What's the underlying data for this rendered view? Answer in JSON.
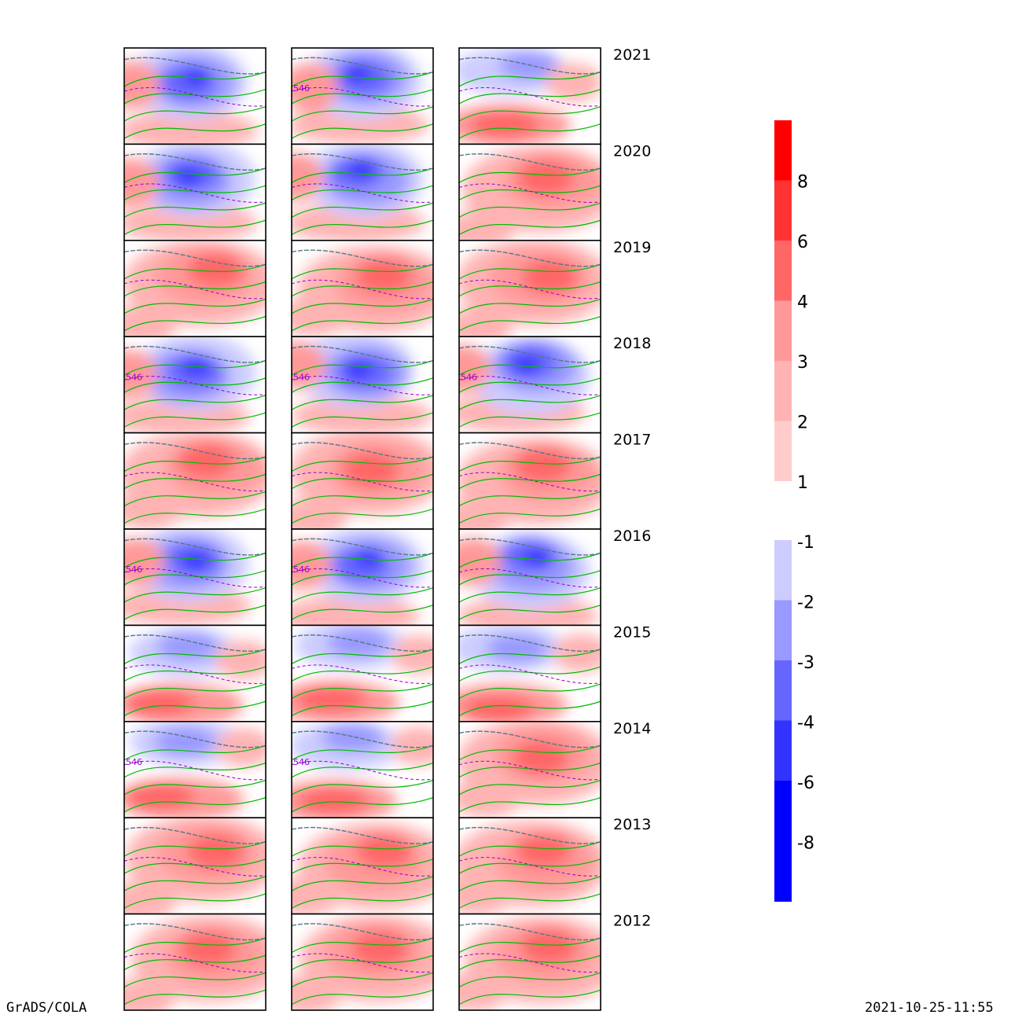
{
  "chart_data": {
    "type": "heatmap",
    "title": "",
    "years": [
      "2021",
      "2020",
      "2019",
      "2018",
      "2017",
      "2016",
      "2015",
      "2014",
      "2013",
      "2012"
    ],
    "columns": 3,
    "contour_label": "546",
    "colorbar": {
      "positive": {
        "tick_labels": [
          "8",
          "6",
          "4",
          "3",
          "2",
          "1"
        ],
        "colors": [
          "#ff0000",
          "#ff3333",
          "#ff6666",
          "#ff9999",
          "#ffb3b3",
          "#ffcccc"
        ]
      },
      "negative": {
        "tick_labels": [
          "-1",
          "-2",
          "-3",
          "-4",
          "-6",
          "-8"
        ],
        "colors": [
          "#ccccff",
          "#9999ff",
          "#6666ff",
          "#3333ff",
          "#0000ff"
        ]
      }
    },
    "anomaly_sign": [
      [
        "neg",
        "neg",
        "mixed"
      ],
      [
        "neg",
        "neg",
        "pos"
      ],
      [
        "pos",
        "pos",
        "pos"
      ],
      [
        "neg",
        "neg",
        "neg"
      ],
      [
        "pos",
        "pos",
        "pos"
      ],
      [
        "neg",
        "neg",
        "neg"
      ],
      [
        "mixed",
        "mixed",
        "mixed"
      ],
      [
        "mixed",
        "mixed",
        "pos"
      ],
      [
        "pos",
        "pos",
        "pos"
      ],
      [
        "pos",
        "pos",
        "pos"
      ]
    ],
    "contour_colors": {
      "green": "#00bb00",
      "purple_dashed": "#9900cc",
      "grey_dashed": "#557788"
    }
  },
  "footer": {
    "left": "GrADS/COLA",
    "right": "2021-10-25-11:55"
  }
}
